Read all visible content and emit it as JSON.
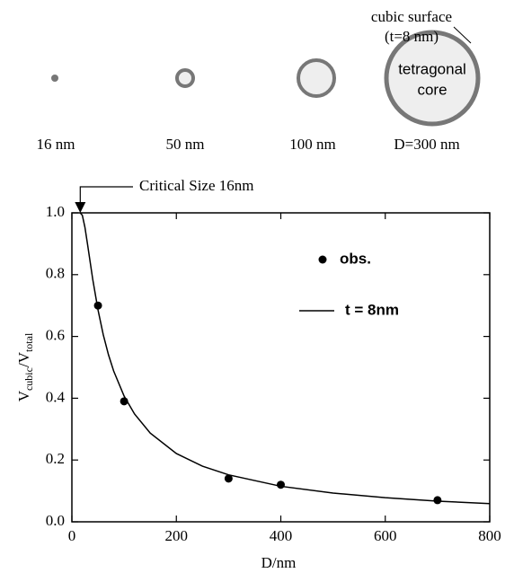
{
  "diagram": {
    "sizes": [
      "16 nm",
      "50 nm",
      "100 nm",
      "D=300 nm"
    ],
    "surface_label": [
      "cubic surface",
      "(t=8 nm)"
    ],
    "core_label": [
      "tetragonal",
      "core"
    ]
  },
  "chart_data": {
    "type": "scatter",
    "annotation": "Critical Size 16nm",
    "x_label": "D/nm",
    "y_label": [
      "V",
      "cubic",
      "/V",
      "total"
    ],
    "xlim": [
      0,
      800
    ],
    "xticks": [
      0,
      200,
      400,
      600,
      800
    ],
    "ylim": [
      0,
      1.0
    ],
    "yticks": [
      {
        "value": 0,
        "label": "0.0"
      },
      0.2,
      0.4,
      0.6,
      0.8,
      {
        "value": 1.0,
        "label": "1.0"
      }
    ],
    "series": [
      {
        "name": "obs.",
        "type": "scatter",
        "color": "#000000",
        "x": [
          50,
          100,
          300,
          400,
          700
        ],
        "values": [
          0.7,
          0.39,
          0.14,
          0.12,
          0.07
        ]
      },
      {
        "name": "t = 8nm",
        "type": "line",
        "color": "#000000",
        "x": [
          16,
          20,
          25,
          30,
          40,
          50,
          60,
          70,
          80,
          100,
          120,
          150,
          200,
          250,
          300,
          400,
          500,
          600,
          700,
          800
        ],
        "values": [
          1.0,
          0.992,
          0.953,
          0.898,
          0.784,
          0.686,
          0.606,
          0.541,
          0.488,
          0.407,
          0.349,
          0.287,
          0.221,
          0.18,
          0.152,
          0.115,
          0.093,
          0.078,
          0.067,
          0.059
        ]
      }
    ]
  }
}
